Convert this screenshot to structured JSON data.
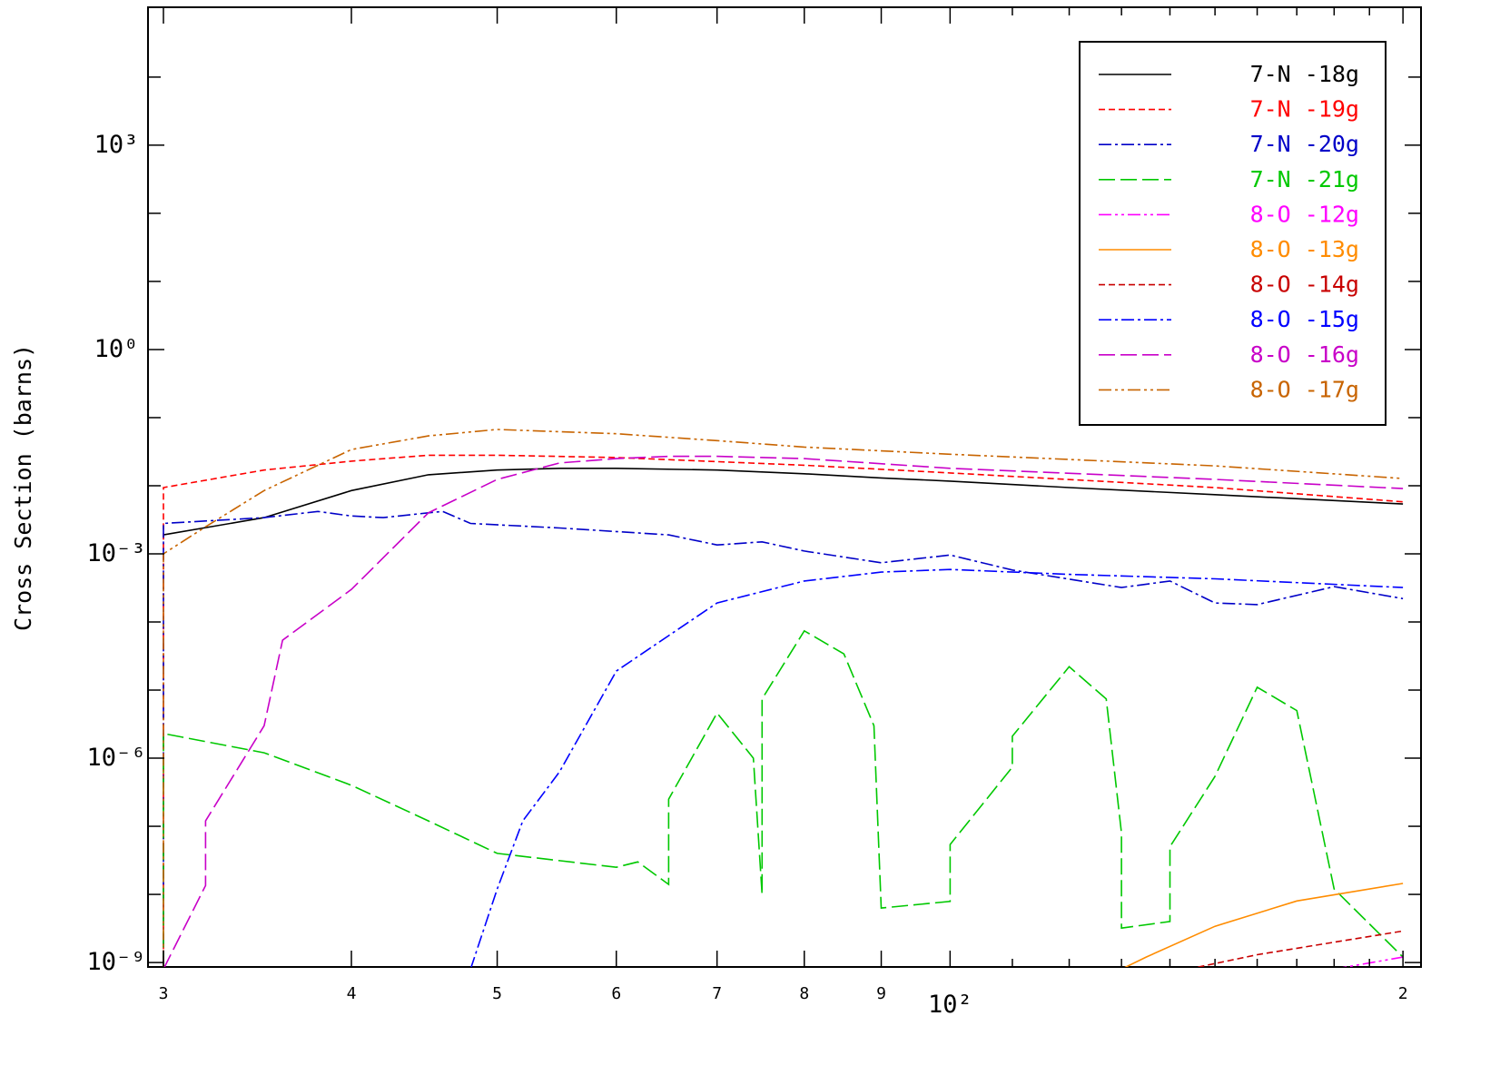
{
  "chart_data": {
    "type": "line",
    "ylabel": "Cross Section (barns)",
    "xscale": "log",
    "yscale": "log",
    "xlim": [
      29.3,
      205.6
    ],
    "ylim": [
      8.6e-10,
      106000
    ],
    "xticks": [
      {
        "value": 30,
        "label": "3"
      },
      {
        "value": 40,
        "label": "4"
      },
      {
        "value": 50,
        "label": "5"
      },
      {
        "value": 60,
        "label": "6"
      },
      {
        "value": 70,
        "label": "7"
      },
      {
        "value": 80,
        "label": "8"
      },
      {
        "value": 90,
        "label": "9"
      },
      {
        "value": 100,
        "label": "10²"
      },
      {
        "value": 200,
        "label": "2"
      }
    ],
    "xminor": [
      110,
      120,
      130,
      140,
      150,
      160,
      170,
      180,
      190
    ],
    "yticks": [
      {
        "value": 1e-09,
        "label": "10⁻⁹"
      },
      {
        "value": 1e-06,
        "label": "10⁻⁶"
      },
      {
        "value": 0.001,
        "label": "10⁻³"
      },
      {
        "value": 1,
        "label": "10⁰"
      },
      {
        "value": 1000,
        "label": "10³"
      }
    ],
    "yminor": [
      1e-08,
      1e-07,
      1e-05,
      0.0001,
      0.01,
      0.1,
      10,
      100,
      10000
    ],
    "legend": "upper right",
    "series": [
      {
        "name": "7-N -18g",
        "color": "#000000",
        "dash": "solid",
        "x": [
          30,
          35,
          40,
          45,
          50,
          55,
          60,
          70,
          80,
          90,
          100,
          120,
          150,
          200
        ],
        "values": [
          0.0019,
          0.0034,
          0.0085,
          0.0145,
          0.017,
          0.018,
          0.018,
          0.017,
          0.015,
          0.013,
          0.0117,
          0.0094,
          0.0074,
          0.0054
        ]
      },
      {
        "name": "7-N -19g",
        "color": "#ff0000",
        "dash": "dashed",
        "x": [
          30,
          30,
          35,
          40,
          45,
          50,
          60,
          80,
          100,
          150,
          200
        ],
        "values": [
          8e-10,
          0.0094,
          0.017,
          0.023,
          0.028,
          0.028,
          0.026,
          0.02,
          0.0154,
          0.0094,
          0.0058
        ]
      },
      {
        "name": "7-N -20g",
        "color": "#0000c8",
        "dash": "dashdot",
        "x": [
          30,
          30,
          35,
          38,
          40,
          42,
          45,
          46,
          48,
          55,
          65,
          70,
          75,
          80,
          90,
          100,
          110,
          130,
          140,
          150,
          160,
          180,
          200
        ],
        "values": [
          8e-10,
          0.0028,
          0.0034,
          0.0042,
          0.0036,
          0.0034,
          0.004,
          0.0042,
          0.0028,
          0.0024,
          0.0019,
          0.00135,
          0.0015,
          0.0011,
          0.00074,
          0.00096,
          0.00058,
          0.00032,
          0.0004,
          0.00019,
          0.00018,
          0.00033,
          0.00022
        ]
      },
      {
        "name": "7-N -21g",
        "color": "#00c800",
        "dash": "longdash",
        "x": [
          30,
          30,
          35,
          40,
          45,
          50,
          60,
          62,
          65,
          65,
          70,
          74,
          75,
          75,
          80,
          85,
          89,
          90,
          100,
          100,
          110,
          110,
          120,
          127,
          130,
          130,
          140,
          140,
          150,
          160,
          170,
          180,
          200
        ],
        "values": [
          8e-10,
          2.3e-06,
          1.2e-06,
          4e-07,
          1.2e-07,
          4e-08,
          2.5e-08,
          3e-08,
          1.4e-08,
          2.5e-07,
          4.6e-06,
          1e-06,
          1e-08,
          7.4e-06,
          7.4e-05,
          3.4e-05,
          3e-06,
          6.3e-09,
          7.9e-09,
          5.4e-08,
          7.4e-07,
          2.1e-06,
          2.2e-05,
          7.4e-06,
          8e-08,
          3.2e-09,
          4e-09,
          5e-08,
          5.4e-07,
          1.1e-05,
          5e-06,
          1.2e-08,
          1.2e-09
        ]
      },
      {
        "name": "8-O -12g",
        "color": "#ff00ff",
        "dash": "dashdotdot",
        "x": [
          180,
          200
        ],
        "values": [
          8e-10,
          1.2e-09
        ]
      },
      {
        "name": "8-O -13g",
        "color": "#ff8c00",
        "dash": "solid",
        "x": [
          130,
          135,
          150,
          170,
          200
        ],
        "values": [
          8e-10,
          1.2e-09,
          3.4e-09,
          8e-09,
          1.45e-08
        ]
      },
      {
        "name": "8-O -14g",
        "color": "#c80000",
        "dash": "dashed",
        "x": [
          144,
          160,
          200
        ],
        "values": [
          8e-10,
          1.3e-09,
          2.9e-09
        ]
      },
      {
        "name": "8-O -15g",
        "color": "#0000ff",
        "dash": "dashdot",
        "x": [
          48,
          50,
          52,
          55,
          60,
          65,
          70,
          80,
          90,
          100,
          120,
          150,
          200
        ],
        "values": [
          8e-10,
          1.2e-08,
          1.2e-07,
          6.3e-07,
          1.9e-05,
          6.3e-05,
          0.00019,
          0.0004,
          0.00054,
          0.00059,
          0.0005,
          0.00043,
          0.00032
        ]
      },
      {
        "name": "8-O -16g",
        "color": "#c800c8",
        "dash": "longdash",
        "x": [
          30,
          32,
          32,
          35,
          36,
          40,
          45,
          50,
          55,
          60,
          65,
          70,
          80,
          100,
          150,
          200
        ],
        "values": [
          8e-10,
          1.35e-08,
          1.2e-07,
          3e-06,
          5.4e-05,
          0.0003,
          0.004,
          0.0124,
          0.0216,
          0.025,
          0.027,
          0.027,
          0.025,
          0.018,
          0.0124,
          0.0091
        ]
      },
      {
        "name": "8-O -17g",
        "color": "#c86400",
        "dash": "dashdotdot",
        "x": [
          30,
          30,
          32,
          35,
          40,
          45,
          50,
          60,
          70,
          80,
          100,
          150,
          200
        ],
        "values": [
          8e-10,
          0.001,
          0.0025,
          0.0085,
          0.034,
          0.054,
          0.067,
          0.058,
          0.046,
          0.037,
          0.029,
          0.0196,
          0.0128
        ]
      }
    ]
  }
}
